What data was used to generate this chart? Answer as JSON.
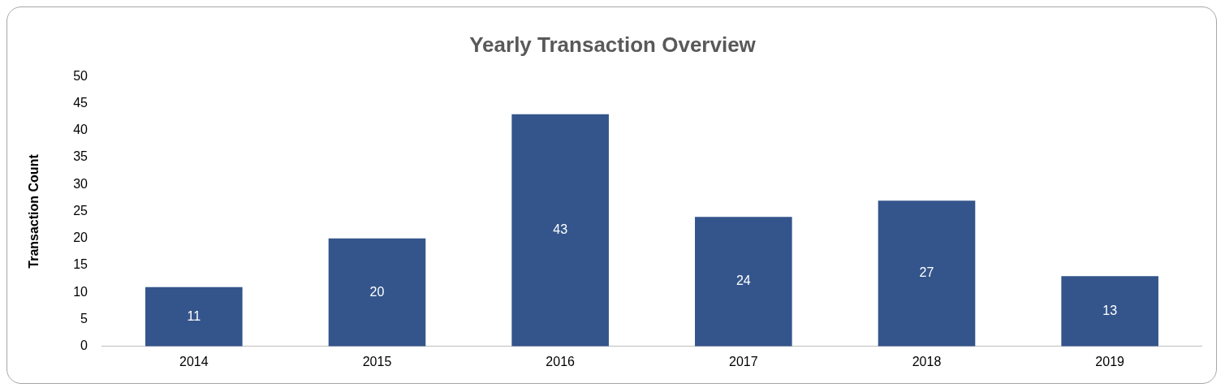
{
  "chart_data": {
    "type": "bar",
    "title": "Yearly Transaction Overview",
    "ylabel": "Transaction Count",
    "categories": [
      "2014",
      "2015",
      "2016",
      "2017",
      "2018",
      "2019"
    ],
    "values": [
      11,
      20,
      43,
      24,
      27,
      13
    ],
    "color": "#34558b",
    "ylim": [
      0,
      50
    ],
    "yticks": [
      0,
      5,
      10,
      15,
      20,
      25,
      30,
      35,
      40,
      45,
      50
    ],
    "grid": false,
    "legend": false,
    "data_labels": true
  }
}
